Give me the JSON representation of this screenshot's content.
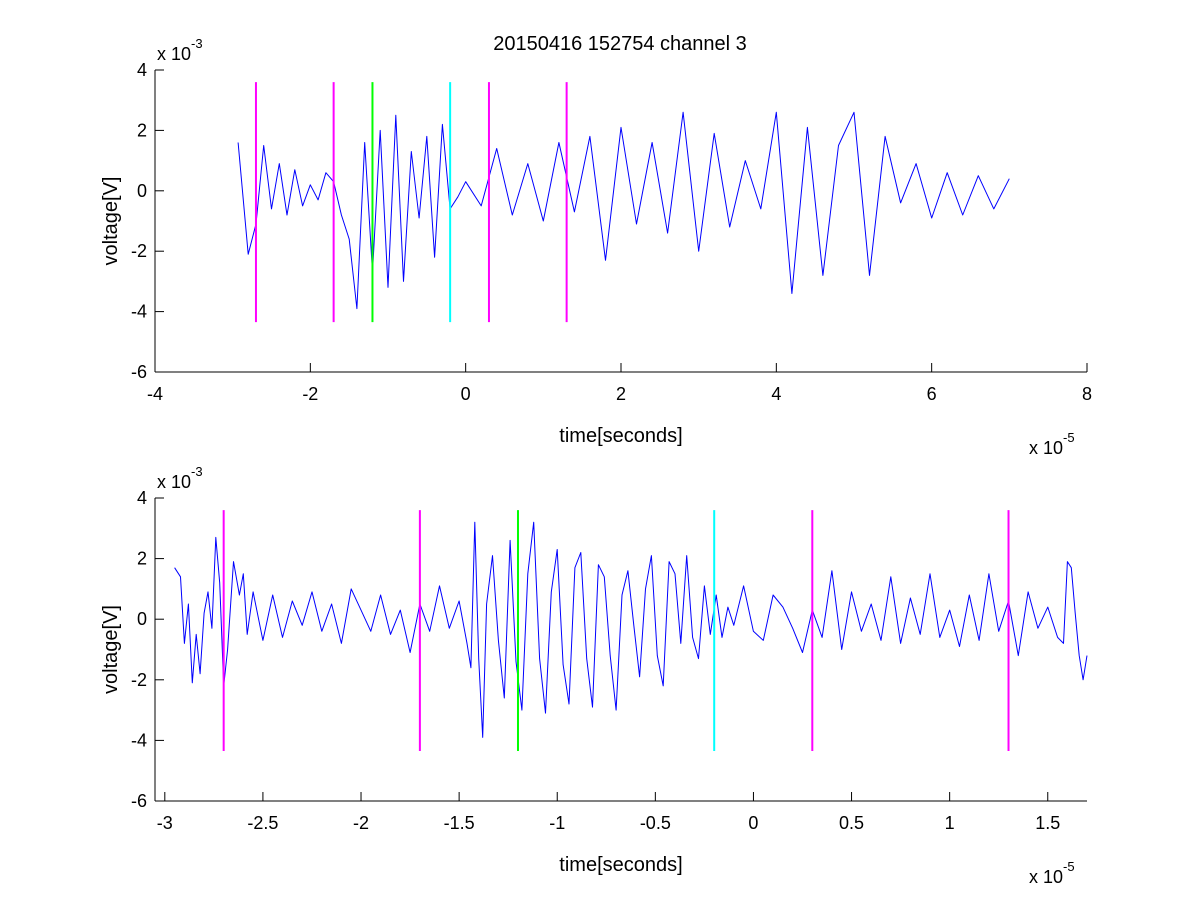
{
  "title": "20150416 152754 channel 3",
  "colors": {
    "background": "#ffffff",
    "axes": "#000000",
    "signal": "#0000ff",
    "marker_magenta": "#ff00ff",
    "marker_green": "#00ff00",
    "marker_cyan": "#00ffff"
  },
  "chart_data": [
    {
      "type": "line",
      "xlabel": "time[seconds]",
      "ylabel": "voltage[V]",
      "x_multiplier": "x 10",
      "x_exponent": "-5",
      "y_multiplier": "x 10",
      "y_exponent": "-3",
      "xlim": [
        -4,
        8
      ],
      "ylim": [
        -6,
        4
      ],
      "xticks": [
        -4,
        -2,
        0,
        2,
        4,
        6,
        8
      ],
      "xtick_labels": [
        "-4",
        "-2",
        "0",
        "2",
        "4",
        "6",
        "8"
      ],
      "yticks": [
        -6,
        -4,
        -2,
        0,
        2,
        4
      ],
      "ytick_labels": [
        "-6",
        "-4",
        "-2",
        "0",
        "2",
        "4"
      ],
      "grid": false,
      "series": [
        {
          "color": "#0000ff",
          "x": [
            -2.93,
            -2.8,
            -2.7,
            -2.6,
            -2.5,
            -2.4,
            -2.3,
            -2.2,
            -2.1,
            -2.0,
            -1.9,
            -1.8,
            -1.7,
            -1.6,
            -1.5,
            -1.4,
            -1.3,
            -1.2,
            -1.1,
            -1.0,
            -0.9,
            -0.8,
            -0.7,
            -0.6,
            -0.5,
            -0.4,
            -0.3,
            -0.2,
            -0.1,
            0.0,
            0.2,
            0.4,
            0.6,
            0.8,
            1.0,
            1.2,
            1.4,
            1.6,
            1.8,
            2.0,
            2.2,
            2.4,
            2.6,
            2.8,
            3.0,
            3.2,
            3.4,
            3.6,
            3.8,
            4.0,
            4.2,
            4.4,
            4.6,
            4.8,
            5.0,
            5.2,
            5.4,
            5.6,
            5.8,
            6.0,
            6.2,
            6.4,
            6.6,
            6.8,
            7.0
          ],
          "y": [
            1.6,
            -2.1,
            -1.1,
            1.5,
            -0.6,
            0.9,
            -0.8,
            0.7,
            -0.5,
            0.2,
            -0.3,
            0.6,
            0.3,
            -0.8,
            -1.6,
            -3.9,
            1.6,
            -2.7,
            2.0,
            -3.2,
            2.5,
            -3.0,
            1.3,
            -0.9,
            1.8,
            -2.2,
            2.2,
            -0.6,
            -0.2,
            0.3,
            -0.5,
            1.4,
            -0.8,
            0.9,
            -1.0,
            1.6,
            -0.7,
            1.8,
            -2.3,
            2.1,
            -1.1,
            1.6,
            -1.4,
            2.6,
            -2.0,
            1.9,
            -1.2,
            1.0,
            -0.6,
            2.6,
            -3.4,
            2.1,
            -2.8,
            1.5,
            2.6,
            -2.8,
            1.8,
            -0.4,
            0.9,
            -0.9,
            0.6,
            -0.8,
            0.5,
            -0.6,
            0.4
          ]
        }
      ],
      "markers": [
        {
          "x": -2.7,
          "color": "#ff00ff"
        },
        {
          "x": -1.7,
          "color": "#ff00ff"
        },
        {
          "x": -1.2,
          "color": "#00ff00"
        },
        {
          "x": -0.2,
          "color": "#00ffff"
        },
        {
          "x": 0.3,
          "color": "#ff00ff"
        },
        {
          "x": 1.3,
          "color": "#ff00ff"
        }
      ],
      "marker_ylim": [
        -4.35,
        3.6
      ]
    },
    {
      "type": "line",
      "xlabel": "time[seconds]",
      "ylabel": "voltage[V]",
      "x_multiplier": "x 10",
      "x_exponent": "-5",
      "y_multiplier": "x 10",
      "y_exponent": "-3",
      "xlim": [
        -3.05,
        1.7
      ],
      "ylim": [
        -6,
        4
      ],
      "xticks": [
        -3,
        -2.5,
        -2,
        -1.5,
        -1,
        -0.5,
        0,
        0.5,
        1,
        1.5
      ],
      "xtick_labels": [
        "-3",
        "-2.5",
        "-2",
        "-1.5",
        "-1",
        "-0.5",
        "0",
        "0.5",
        "1",
        "1.5"
      ],
      "yticks": [
        -6,
        -4,
        -2,
        0,
        2,
        4
      ],
      "ytick_labels": [
        "-6",
        "-4",
        "-2",
        "0",
        "2",
        "4"
      ],
      "grid": false,
      "series": [
        {
          "color": "#0000ff",
          "x": [
            -2.95,
            -2.92,
            -2.9,
            -2.88,
            -2.86,
            -2.84,
            -2.82,
            -2.8,
            -2.78,
            -2.76,
            -2.74,
            -2.72,
            -2.7,
            -2.68,
            -2.65,
            -2.62,
            -2.6,
            -2.58,
            -2.55,
            -2.5,
            -2.45,
            -2.4,
            -2.35,
            -2.3,
            -2.25,
            -2.2,
            -2.15,
            -2.1,
            -2.05,
            -2.0,
            -1.95,
            -1.9,
            -1.85,
            -1.8,
            -1.75,
            -1.7,
            -1.65,
            -1.6,
            -1.55,
            -1.5,
            -1.46,
            -1.44,
            -1.42,
            -1.4,
            -1.38,
            -1.36,
            -1.33,
            -1.3,
            -1.27,
            -1.24,
            -1.21,
            -1.18,
            -1.15,
            -1.12,
            -1.09,
            -1.06,
            -1.03,
            -1.0,
            -0.97,
            -0.94,
            -0.91,
            -0.88,
            -0.85,
            -0.82,
            -0.79,
            -0.76,
            -0.73,
            -0.7,
            -0.67,
            -0.64,
            -0.61,
            -0.58,
            -0.55,
            -0.52,
            -0.49,
            -0.46,
            -0.43,
            -0.4,
            -0.37,
            -0.34,
            -0.31,
            -0.28,
            -0.25,
            -0.22,
            -0.19,
            -0.16,
            -0.13,
            -0.1,
            -0.05,
            0.0,
            0.05,
            0.1,
            0.15,
            0.2,
            0.25,
            0.3,
            0.35,
            0.4,
            0.45,
            0.5,
            0.55,
            0.6,
            0.65,
            0.7,
            0.75,
            0.8,
            0.85,
            0.9,
            0.95,
            1.0,
            1.05,
            1.1,
            1.15,
            1.2,
            1.25,
            1.3,
            1.35,
            1.4,
            1.45,
            1.5,
            1.55,
            1.58,
            1.6,
            1.62,
            1.64,
            1.66,
            1.68,
            1.7
          ],
          "y": [
            1.7,
            1.4,
            -0.8,
            0.5,
            -2.1,
            -0.5,
            -1.8,
            0.2,
            0.9,
            -0.3,
            2.7,
            1.2,
            -2.2,
            -1.0,
            1.9,
            0.8,
            1.5,
            -0.5,
            0.9,
            -0.7,
            0.8,
            -0.6,
            0.6,
            -0.2,
            0.9,
            -0.4,
            0.5,
            -0.8,
            1.0,
            0.3,
            -0.4,
            0.8,
            -0.5,
            0.3,
            -1.1,
            0.5,
            -0.4,
            1.1,
            -0.3,
            0.6,
            -0.8,
            -1.6,
            3.2,
            -1.3,
            -3.9,
            0.5,
            2.1,
            -0.7,
            -2.6,
            2.6,
            -1.4,
            -3.0,
            1.5,
            3.2,
            -1.3,
            -3.1,
            0.9,
            2.3,
            -1.5,
            -2.8,
            1.7,
            2.2,
            -1.3,
            -2.9,
            1.8,
            1.4,
            -1.2,
            -3.0,
            0.8,
            1.6,
            -0.2,
            -1.9,
            1.0,
            2.1,
            -1.2,
            -2.2,
            1.9,
            1.5,
            -0.8,
            2.1,
            -0.6,
            -1.3,
            1.1,
            -0.5,
            0.8,
            -0.6,
            0.4,
            -0.2,
            1.1,
            -0.4,
            -0.7,
            0.8,
            0.4,
            -0.3,
            -1.1,
            0.3,
            -0.6,
            1.6,
            -1.0,
            0.9,
            -0.4,
            0.5,
            -0.7,
            1.4,
            -0.8,
            0.7,
            -0.5,
            1.5,
            -0.6,
            0.3,
            -0.9,
            0.8,
            -0.7,
            1.5,
            -0.4,
            0.6,
            -1.2,
            0.9,
            -0.3,
            0.4,
            -0.6,
            -0.8,
            1.9,
            1.7,
            0.2,
            -1.2,
            -2.0,
            -1.2
          ]
        }
      ],
      "markers": [
        {
          "x": -2.7,
          "color": "#ff00ff"
        },
        {
          "x": -1.7,
          "color": "#ff00ff"
        },
        {
          "x": -1.2,
          "color": "#00ff00"
        },
        {
          "x": -0.2,
          "color": "#00ffff"
        },
        {
          "x": 0.3,
          "color": "#ff00ff"
        },
        {
          "x": 1.3,
          "color": "#ff00ff"
        }
      ],
      "marker_ylim": [
        -4.35,
        3.6
      ]
    }
  ]
}
